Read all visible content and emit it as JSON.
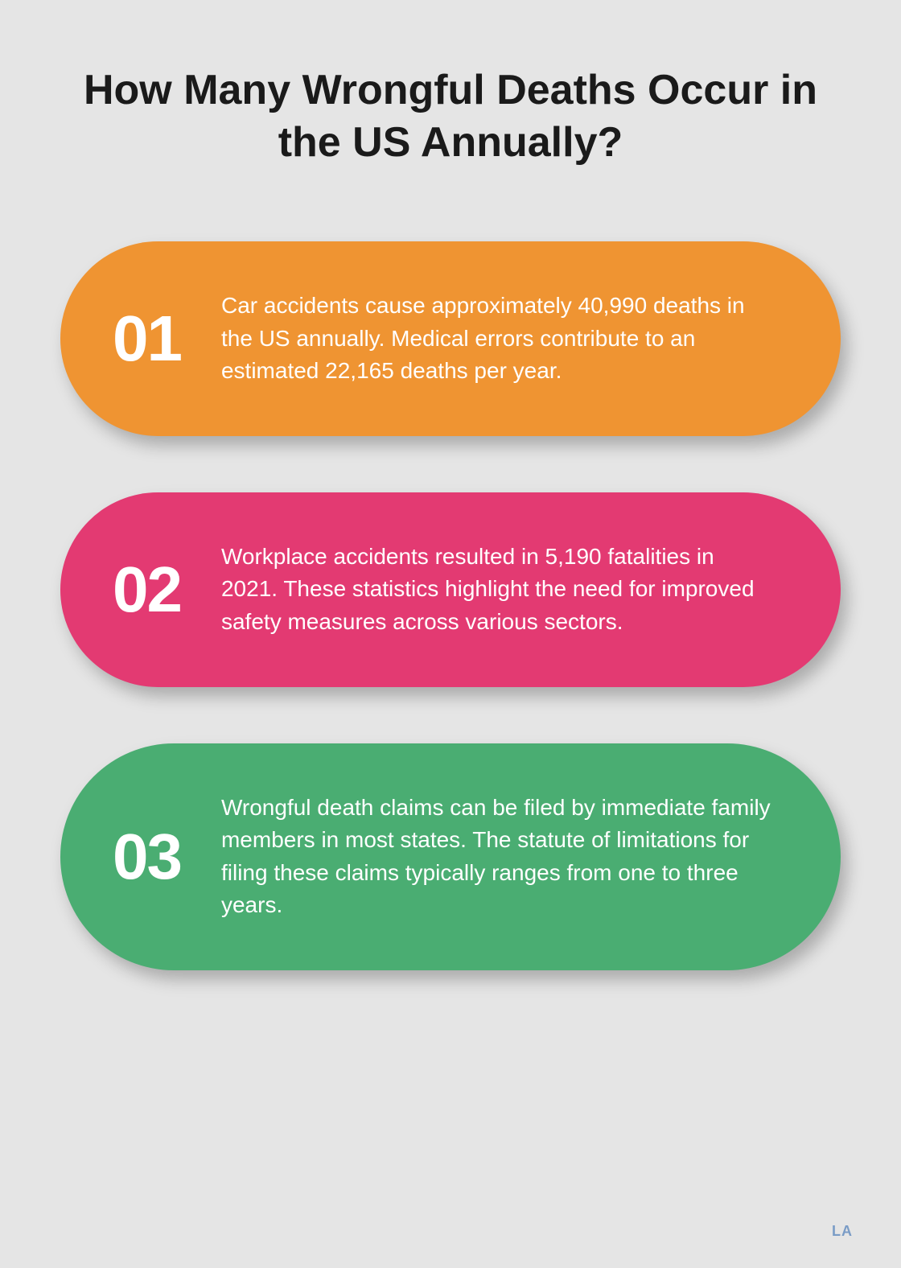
{
  "title": "How Many Wrongful Deaths Occur in the US Annually?",
  "background_color": "#e5e5e5",
  "title_color": "#1a1a1a",
  "title_fontsize": 52,
  "pills": [
    {
      "number": "01",
      "text": "Car accidents cause approximately 40,990 deaths in the US annually. Medical errors contribute to an estimated 22,165 deaths per year.",
      "background_color": "#ef9432",
      "text_color": "#ffffff"
    },
    {
      "number": "02",
      "text": "Workplace accidents resulted in 5,190 fatalities in 2021. These statistics highlight the need for improved safety measures across various sectors.",
      "background_color": "#e33a72",
      "text_color": "#ffffff"
    },
    {
      "number": "03",
      "text": "Wrongful death claims can be filed by immediate family members in most states. The statute of limitations for filing these claims typically ranges from one to three years.",
      "background_color": "#4aad72",
      "text_color": "#ffffff"
    }
  ],
  "number_fontsize": 80,
  "body_fontsize": 28,
  "pill_gap": 70,
  "pill_border_radius": 200,
  "logo_text": "LA",
  "logo_color": "#7a9cc6"
}
